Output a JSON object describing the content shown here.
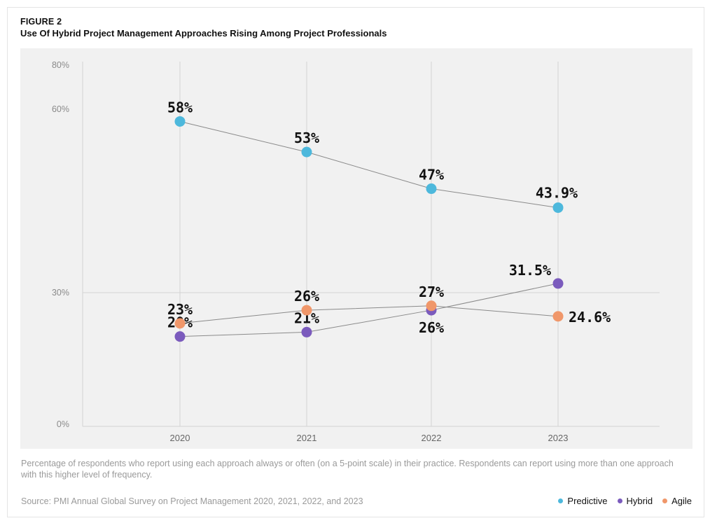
{
  "figure": {
    "label": "FIGURE 2",
    "title": "Use Of Hybrid Project Management Approaches Rising Among Project Professionals"
  },
  "footnote": "Percentage of respondents who report using each approach always or often (on a 5-point scale) in their practice. Respondents can report using more than one approach with this higher level of frequency.",
  "source": "Source: PMI Annual Global Survey on Project Management 2020, 2021, 2022, and 2023",
  "colors": {
    "predictive": "#4db8dc",
    "hybrid": "#7b5bbd",
    "agile": "#f0976a",
    "line": "#8a8a8a",
    "grid": "#d2d2d2",
    "plot_bg": "#f1f1f1"
  },
  "chart_data": {
    "type": "line",
    "title": "Use Of Hybrid Project Management Approaches Rising Among Project Professionals",
    "xlabel": "",
    "ylabel": "",
    "categories": [
      "2020",
      "2021",
      "2022",
      "2023"
    ],
    "y_ticks": [
      {
        "value": 80,
        "label": "80%"
      },
      {
        "value": 60,
        "label": "60%"
      },
      {
        "value": 30,
        "label": "30%"
      },
      {
        "value": 0,
        "label": "0%"
      }
    ],
    "ylim": [
      0,
      80
    ],
    "grid": true,
    "legend_position": "bottom-right",
    "series": [
      {
        "name": "Predictive",
        "color_key": "predictive",
        "values": [
          58,
          53,
          47,
          43.9
        ],
        "labels": [
          "58%",
          "53%",
          "47%",
          "43.9%"
        ]
      },
      {
        "name": "Hybrid",
        "color_key": "hybrid",
        "values": [
          20,
          21,
          26,
          31.5
        ],
        "labels": [
          "20%",
          "21%",
          "26%",
          "31.5%"
        ]
      },
      {
        "name": "Agile",
        "color_key": "agile",
        "values": [
          23,
          26,
          27,
          24.6
        ],
        "labels": [
          "23%",
          "26%",
          "27%",
          "24.6%"
        ]
      }
    ]
  }
}
